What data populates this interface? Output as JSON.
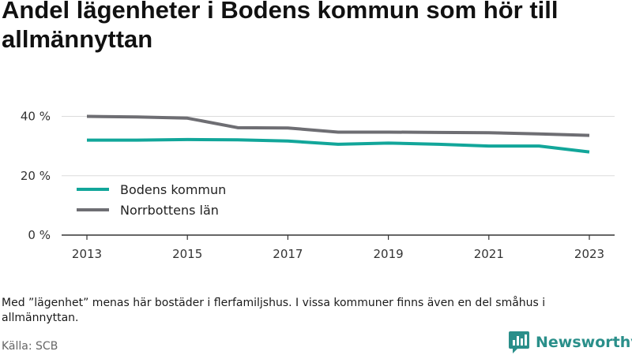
{
  "title": "Andel lägenheter i Bodens kommun som hör till allmännyttan",
  "note": "Med ”lägenhet” menas här bostäder i flerfamiljshus. I vissa kommuner finns även en del småhus i allmännyttan.",
  "source": "Källa: SCB",
  "brand": {
    "name": "Newsworthy",
    "color": "#2a8f8a"
  },
  "chart_data": {
    "type": "line",
    "title": "Andel lägenheter i Bodens kommun som hör till allmännyttan",
    "xlabel": "",
    "ylabel": "",
    "x": [
      2013,
      2014,
      2015,
      2016,
      2017,
      2018,
      2019,
      2020,
      2021,
      2022,
      2023
    ],
    "x_ticks": [
      "2013",
      "2015",
      "2017",
      "2019",
      "2021",
      "2023"
    ],
    "y_ticks": [
      {
        "value": 0,
        "label": "0 %"
      },
      {
        "value": 20,
        "label": "20 %"
      },
      {
        "value": 40,
        "label": "40 %"
      }
    ],
    "ylim": [
      0,
      42
    ],
    "grid": true,
    "legend_position": "inside-left",
    "series": [
      {
        "name": "Bodens kommun",
        "color": "#12a69a",
        "values": [
          32.0,
          32.0,
          32.2,
          32.1,
          31.7,
          30.6,
          31.0,
          30.6,
          30.0,
          30.0,
          28.0
        ]
      },
      {
        "name": "Norrbottens län",
        "color": "#6e6e73",
        "values": [
          40.0,
          39.8,
          39.4,
          36.2,
          36.1,
          34.7,
          34.7,
          34.6,
          34.5,
          34.1,
          33.6
        ]
      }
    ]
  }
}
